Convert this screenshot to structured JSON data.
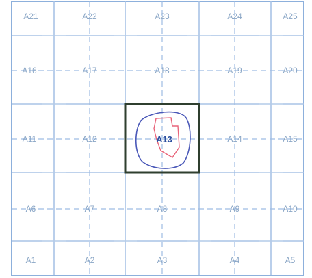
{
  "grid": {
    "rows": [
      [
        "A21",
        "A22",
        "A23",
        "A24",
        "A25"
      ],
      [
        "A16",
        "A17",
        "A18",
        "A19",
        "A20"
      ],
      [
        "A11",
        "A12",
        "A13",
        "A14",
        "A15"
      ],
      [
        "A6",
        "A7",
        "A8",
        "A9",
        "A10"
      ],
      [
        "A1",
        "A2",
        "A3",
        "A4",
        "A5"
      ]
    ],
    "highlighted_cell": "A13"
  },
  "colors": {
    "background": "#ffffff",
    "grid_line": "#a9c3e6",
    "dashed_line": "#9ebce3",
    "outer_frame": "#8db0dc",
    "highlight_border": "#2f3f2f",
    "outer_contour": "#4a58b8",
    "inner_contour": "#e8647a",
    "label": "#8aa6c6",
    "center_label": "#2b4fa0"
  }
}
